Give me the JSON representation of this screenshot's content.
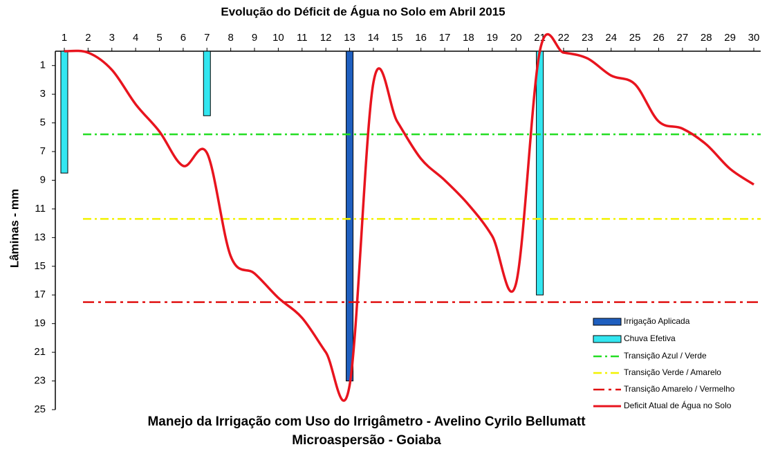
{
  "chart_data": {
    "type": "line",
    "title": "Evolução do Déficit de Água no Solo em Abril 2015",
    "footer_lines": [
      "Manejo da Irrigação com Uso do Irrigâmetro - Avelino Cyrilo Bellumatt",
      "Microaspersão - Goiaba"
    ],
    "y_label": "Lâminas - mm",
    "categories": [
      "1",
      "2",
      "3",
      "4",
      "5",
      "6",
      "7",
      "8",
      "9",
      "10",
      "11",
      "12",
      "13",
      "14",
      "15",
      "16",
      "17",
      "18",
      "19",
      "20",
      "21",
      "22",
      "23",
      "24",
      "25",
      "26",
      "27",
      "28",
      "29",
      "30"
    ],
    "ylim": [
      0,
      25
    ],
    "y_inverted": true,
    "yticks": [
      1,
      3,
      5,
      7,
      9,
      11,
      13,
      15,
      17,
      19,
      21,
      23,
      25
    ],
    "bar_series": [
      {
        "name": "Irrigação Aplicada",
        "color": "#1f5fbf",
        "values": [
          null,
          null,
          null,
          null,
          null,
          null,
          null,
          null,
          null,
          null,
          null,
          null,
          23,
          null,
          null,
          null,
          null,
          null,
          null,
          null,
          null,
          null,
          null,
          null,
          null,
          null,
          null,
          null,
          null,
          null
        ]
      },
      {
        "name": "Chuva Efetiva",
        "color": "#33e6f0",
        "values": [
          8.5,
          null,
          null,
          null,
          null,
          null,
          4.5,
          null,
          null,
          null,
          null,
          null,
          null,
          null,
          null,
          null,
          null,
          null,
          null,
          null,
          17,
          null,
          null,
          null,
          null,
          null,
          null,
          null,
          null,
          null
        ]
      }
    ],
    "reference_lines": [
      {
        "name": "Transição Azul / Verde",
        "color": "#22dd22",
        "value": 5.8,
        "dash": "12 5 3 5"
      },
      {
        "name": "Transição Verde / Amarelo",
        "color": "#f2f200",
        "value": 11.7,
        "dash": "12 5 3 5"
      },
      {
        "name": "Transição Amarelo / Vermelho",
        "color": "#e01010",
        "value": 17.5,
        "dash": "16 6 4 6"
      }
    ],
    "series": [
      {
        "name": "Deficit Atual de Água no Solo",
        "color": "#e8141e",
        "values": [
          0,
          0.1,
          1.3,
          3.7,
          5.6,
          8.0,
          7.1,
          14.3,
          15.5,
          17.2,
          18.6,
          21,
          23.3,
          2.2,
          4.9,
          7.5,
          9,
          10.7,
          12.9,
          16.2,
          0,
          0.1,
          0.5,
          1.7,
          2.3,
          4.9,
          5.4,
          6.5,
          8.2,
          9.3
        ]
      }
    ]
  }
}
